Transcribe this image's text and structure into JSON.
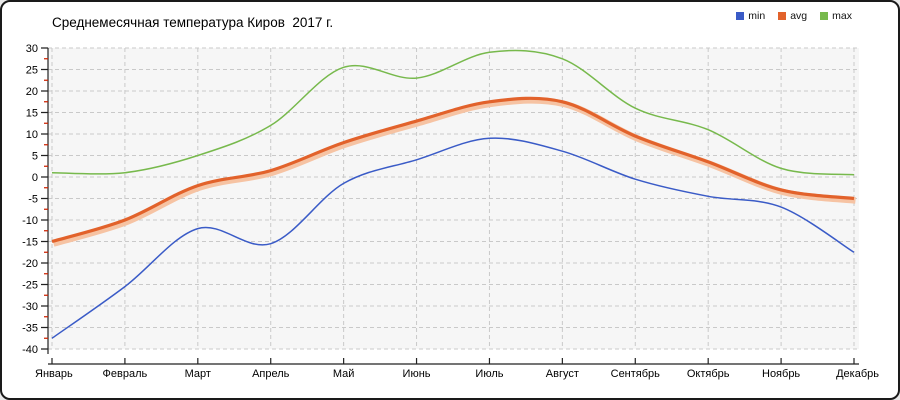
{
  "window": {
    "background": "#ffffff",
    "border_color": "#1a1a1a"
  },
  "chart_data": {
    "type": "line",
    "title": "Среднемесячная температура Киров  2017 г.",
    "categories": [
      "Январь",
      "Февраль",
      "Март",
      "Апрель",
      "Май",
      "Июнь",
      "Июль",
      "Август",
      "Сентябрь",
      "Октябрь",
      "Ноябрь",
      "Декабрь"
    ],
    "series": [
      {
        "name": "min",
        "color": "#3a5bc7",
        "line_width": 1.5,
        "values": [
          -37.5,
          -25.5,
          -12,
          -15.5,
          -1.5,
          4,
          9,
          6,
          -0.5,
          -4.5,
          -7,
          -17.5
        ]
      },
      {
        "name": "avg",
        "color": "#e2622b",
        "halo_color": "#f6c3a3",
        "line_width": 3.2,
        "values": [
          -15,
          -10,
          -2,
          1.5,
          8,
          13,
          17.5,
          17.5,
          9.5,
          3.5,
          -3,
          -5
        ]
      },
      {
        "name": "max",
        "color": "#77b94c",
        "line_width": 1.5,
        "values": [
          1,
          1,
          5,
          12,
          25.5,
          23,
          29,
          27.5,
          16,
          11,
          2,
          0.5
        ]
      }
    ],
    "ylim": [
      -40,
      30
    ],
    "ytick_step": 5,
    "ytick_labels": [
      "30",
      "25",
      "20",
      "15",
      "10",
      "5",
      "0",
      "-5",
      "-10",
      "-15",
      "-20",
      "-25",
      "-30",
      "-35",
      "-40"
    ],
    "xlabel": "",
    "ylabel": "",
    "grid": "dashed",
    "legend_position": "top-right",
    "smoothing": "spline",
    "plot_background": "#f6f6f6",
    "grid_color": "#c9c9c9",
    "axis_color": "#222222",
    "minor_tick_color": "#cc2200",
    "label_color": "#000000"
  }
}
